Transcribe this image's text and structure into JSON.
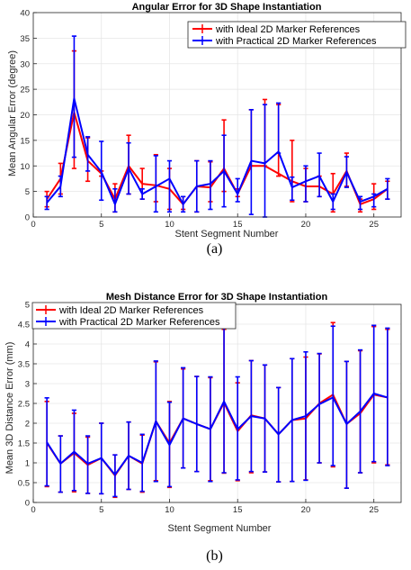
{
  "charts": [
    {
      "id": "a",
      "caption": "(a)",
      "legend_position": "top-right",
      "grid": true
    },
    {
      "id": "b",
      "caption": "(b)",
      "legend_position": "top-left",
      "grid": true
    }
  ],
  "colors": {
    "ideal": "#ff0000",
    "practical": "#0000ff",
    "grid": "#e6e6e6",
    "axis": "#262626"
  },
  "chart_data": [
    {
      "type": "line",
      "title": "Angular Error for 3D Shape Instantiation",
      "xlabel": "Stent Segment Number",
      "ylabel": "Mean Angular Error (degree)",
      "xlim": [
        0,
        27
      ],
      "ylim": [
        0,
        40
      ],
      "xticks": [
        0,
        5,
        10,
        15,
        20,
        25
      ],
      "yticks": [
        0,
        5,
        10,
        15,
        20,
        25,
        30,
        35,
        40
      ],
      "x": [
        1,
        2,
        3,
        4,
        5,
        6,
        7,
        8,
        9,
        10,
        11,
        12,
        13,
        14,
        15,
        16,
        17,
        18,
        19,
        20,
        21,
        22,
        23,
        24,
        25,
        26
      ],
      "series": [
        {
          "name": "with Ideal 2D Marker References",
          "color": "#ff0000",
          "values": [
            3.5,
            7.5,
            20.5,
            11.0,
            8.5,
            3.5,
            10.0,
            6.5,
            6.2,
            5.5,
            2.5,
            6.0,
            5.8,
            9.5,
            4.5,
            10.0,
            10.0,
            8.5,
            7.0,
            6.0,
            6.0,
            4.5,
            9.0,
            2.5,
            3.5,
            5.5
          ],
          "err_lower": [
            1.5,
            3.0,
            11.0,
            4.0,
            0.5,
            2.5,
            5.5,
            3.0,
            3.2,
            4.0,
            1.0,
            5.0,
            2.8,
            4.5,
            0.5,
            0.0,
            0.0,
            0.5,
            4.0,
            3.0,
            2.0,
            3.5,
            3.0,
            1.5,
            2.0,
            2.0
          ],
          "err_upper": [
            1.5,
            3.0,
            12.0,
            4.5,
            0.5,
            3.0,
            6.0,
            3.0,
            6.0,
            4.0,
            1.5,
            5.0,
            5.0,
            9.5,
            1.0,
            11.0,
            13.0,
            13.5,
            8.0,
            3.5,
            2.0,
            4.0,
            3.5,
            1.0,
            3.0,
            1.5
          ]
        },
        {
          "name": "with Practical 2D Marker References",
          "color": "#0000ff",
          "values": [
            2.8,
            6.0,
            23.2,
            12.2,
            8.8,
            2.5,
            9.5,
            4.5,
            6.0,
            7.5,
            2.5,
            6.0,
            6.5,
            9.0,
            4.5,
            11.0,
            10.5,
            12.8,
            5.8,
            7.0,
            8.0,
            3.0,
            8.8,
            3.0,
            4.0,
            5.5
          ],
          "err_lower": [
            1.3,
            2.0,
            11.5,
            3.2,
            5.5,
            1.5,
            5.0,
            1.0,
            5.0,
            6.5,
            1.5,
            5.0,
            5.0,
            7.0,
            1.5,
            10.5,
            10.5,
            0.3,
            2.5,
            4.0,
            4.0,
            1.5,
            3.0,
            1.5,
            2.0,
            2.0
          ],
          "err_upper": [
            1.2,
            2.0,
            12.2,
            3.5,
            6.0,
            3.0,
            5.0,
            1.0,
            6.0,
            3.5,
            1.5,
            5.0,
            4.5,
            7.0,
            3.0,
            10.0,
            11.5,
            9.5,
            2.0,
            3.0,
            4.5,
            1.5,
            3.0,
            1.0,
            0.5,
            2.0
          ]
        }
      ]
    },
    {
      "type": "line",
      "title": "Mesh Distance Error for 3D Shape Instantiation",
      "xlabel": "Stent Segment Number",
      "ylabel": "Mean 3D Distance Error (mm)",
      "xlim": [
        0,
        27
      ],
      "ylim": [
        0,
        5
      ],
      "xticks": [
        0,
        5,
        10,
        15,
        20,
        25
      ],
      "yticks": [
        0,
        0.5,
        1,
        1.5,
        2,
        2.5,
        3,
        3.5,
        4,
        4.5,
        5
      ],
      "yticklabels": [
        "0",
        "0.5",
        "1",
        "1.5",
        "2",
        "2.5",
        "3",
        "3.5",
        "4",
        "4.5",
        "5"
      ],
      "x": [
        1,
        2,
        3,
        4,
        5,
        6,
        7,
        8,
        9,
        10,
        11,
        12,
        13,
        14,
        15,
        16,
        17,
        18,
        19,
        20,
        21,
        22,
        23,
        24,
        25,
        26
      ],
      "series": [
        {
          "name": "with Ideal 2D Marker References",
          "color": "#ff0000",
          "values": [
            1.5,
            0.98,
            1.25,
            0.95,
            1.12,
            0.68,
            1.18,
            0.98,
            2.05,
            1.5,
            2.12,
            1.98,
            1.85,
            2.52,
            1.8,
            2.2,
            2.12,
            1.72,
            2.08,
            2.12,
            2.5,
            2.72,
            1.98,
            2.25,
            2.72,
            2.65
          ],
          "err_lower": [
            1.1,
            0.72,
            0.98,
            0.72,
            0.9,
            0.55,
            0.85,
            0.72,
            1.5,
            1.12,
            1.25,
            1.2,
            1.3,
            1.78,
            1.25,
            1.45,
            1.35,
            1.2,
            1.55,
            1.55,
            1.5,
            1.82,
            1.62,
            1.5,
            1.72,
            1.7
          ],
          "err_upper": [
            1.05,
            0.7,
            1.0,
            0.7,
            0.88,
            0.52,
            0.85,
            0.72,
            1.5,
            1.05,
            1.25,
            1.2,
            1.3,
            1.85,
            1.22,
            1.38,
            1.35,
            1.18,
            1.55,
            1.55,
            1.25,
            1.82,
            1.58,
            1.58,
            1.72,
            1.72
          ]
        },
        {
          "name": "with Practical 2D Marker References",
          "color": "#0000ff",
          "values": [
            1.52,
            0.98,
            1.28,
            0.98,
            1.12,
            0.7,
            1.18,
            1.0,
            2.05,
            1.45,
            2.12,
            1.98,
            1.85,
            2.55,
            1.85,
            2.18,
            2.12,
            1.72,
            2.08,
            2.18,
            2.48,
            2.65,
            1.98,
            2.3,
            2.75,
            2.65
          ],
          "err_lower": [
            1.1,
            0.72,
            0.98,
            0.75,
            0.9,
            0.55,
            0.85,
            0.72,
            1.52,
            1.05,
            1.25,
            1.2,
            1.32,
            1.8,
            1.28,
            1.4,
            1.35,
            1.2,
            1.55,
            1.62,
            1.48,
            1.72,
            1.62,
            1.55,
            1.72,
            1.72
          ],
          "err_upper": [
            1.12,
            0.7,
            1.05,
            0.7,
            0.88,
            0.5,
            0.85,
            0.72,
            1.52,
            1.08,
            1.28,
            1.2,
            1.32,
            1.85,
            1.32,
            1.4,
            1.35,
            1.18,
            1.55,
            1.62,
            1.28,
            1.8,
            1.58,
            1.55,
            1.72,
            1.75
          ]
        }
      ]
    }
  ]
}
